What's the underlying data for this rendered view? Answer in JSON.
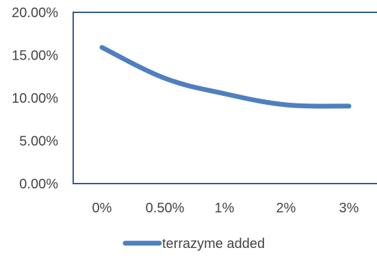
{
  "chart_data": {
    "type": "line",
    "title": "",
    "xlabel": "",
    "ylabel": "",
    "categories": [
      "0%",
      "0.50%",
      "1%",
      "2%",
      "3%"
    ],
    "y_ticks": [
      "0.00%",
      "5.00%",
      "10.00%",
      "15.00%",
      "20.00%"
    ],
    "ylim": [
      0,
      20
    ],
    "grid": false,
    "legend_position": "bottom",
    "series": [
      {
        "name": "terrazyme added",
        "values": [
          15.9,
          12.3,
          10.5,
          9.2,
          9.05
        ],
        "color": "#4f7fbf"
      }
    ],
    "frame_color": "#2f5597"
  }
}
